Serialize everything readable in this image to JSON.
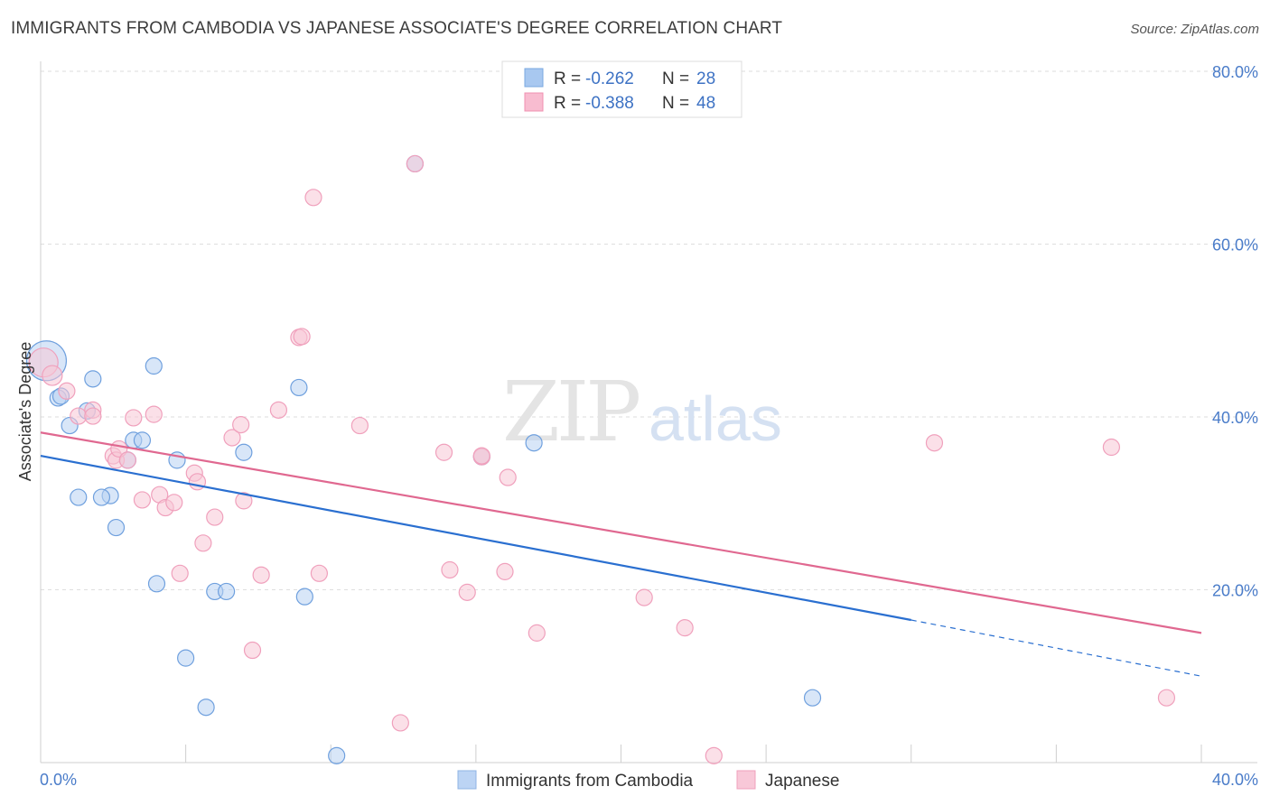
{
  "title": "IMMIGRANTS FROM CAMBODIA VS JAPANESE ASSOCIATE'S DEGREE CORRELATION CHART",
  "source": "Source: ZipAtlas.com",
  "watermark": {
    "zip": "ZIP",
    "atlas": "atlas"
  },
  "legend": {
    "rows": [
      {
        "r_label": "R =",
        "r_value": "-0.262",
        "n_label": "N =",
        "n_value": "28",
        "color": "#a8c8f0",
        "border": "#7aa8e0"
      },
      {
        "r_label": "R =",
        "r_value": "-0.388",
        "n_label": "N =",
        "n_value": "48",
        "color": "#f8bcd0",
        "border": "#f090b0"
      }
    ]
  },
  "bottom_legend": [
    {
      "label": "Immigrants from Cambodia",
      "color": "#bcd4f4",
      "border": "#90b4e4"
    },
    {
      "label": "Japanese",
      "color": "#f8c8d8",
      "border": "#f0a0bc"
    }
  ],
  "chart_data": {
    "type": "scatter",
    "xlabel": "",
    "ylabel": "Associate's Degree",
    "xlim": [
      0,
      40
    ],
    "ylim": [
      0,
      80
    ],
    "x_tick_labels": [
      "0.0%",
      "40.0%"
    ],
    "y_ticks": [
      20,
      40,
      60,
      80
    ],
    "y_tick_labels": [
      "20.0%",
      "40.0%",
      "60.0%",
      "80.0%"
    ],
    "grid": true,
    "series": [
      {
        "name": "Immigrants from Cambodia",
        "color": "#6fa0de",
        "fill": "#b8d2f2",
        "trend_color": "#2a6fd0",
        "trend": {
          "x0": 0,
          "y0": 35.5,
          "x1": 30,
          "y1": 16.5,
          "dash_x1": 40,
          "dash_y1": 10
        },
        "points": [
          [
            0.2,
            46.5,
            22
          ],
          [
            0.6,
            42.2,
            9
          ],
          [
            0.7,
            42.4,
            9
          ],
          [
            1.8,
            44.4,
            9
          ],
          [
            1.0,
            39.0,
            9
          ],
          [
            1.6,
            40.7,
            9
          ],
          [
            3.9,
            45.9,
            9
          ],
          [
            3.2,
            37.3,
            9
          ],
          [
            3.5,
            37.3,
            9
          ],
          [
            3.0,
            35.0,
            9
          ],
          [
            4.7,
            35.0,
            9
          ],
          [
            7.0,
            35.9,
            9
          ],
          [
            8.9,
            43.4,
            9
          ],
          [
            1.3,
            30.7,
            9
          ],
          [
            2.4,
            30.9,
            9
          ],
          [
            2.1,
            30.7,
            9
          ],
          [
            2.6,
            27.2,
            9
          ],
          [
            4.0,
            20.7,
            9
          ],
          [
            6.0,
            19.8,
            9
          ],
          [
            6.4,
            19.8,
            9
          ],
          [
            9.1,
            19.2,
            9
          ],
          [
            5.0,
            12.1,
            9
          ],
          [
            5.7,
            6.4,
            9
          ],
          [
            12.9,
            69.3,
            9
          ],
          [
            15.2,
            35.4,
            9
          ],
          [
            17.0,
            37.0,
            9
          ],
          [
            10.2,
            0.8,
            9
          ],
          [
            26.6,
            7.5,
            9
          ]
        ]
      },
      {
        "name": "Japanese",
        "color": "#f0a0bc",
        "fill": "#f8c6d6",
        "trend_color": "#e06890",
        "trend": {
          "x0": 0,
          "y0": 38.2,
          "x1": 40,
          "y1": 15.0
        },
        "points": [
          [
            0.1,
            46.3,
            16
          ],
          [
            0.4,
            44.8,
            11
          ],
          [
            0.9,
            43.0,
            9
          ],
          [
            1.3,
            40.1,
            9
          ],
          [
            1.8,
            40.8,
            9
          ],
          [
            1.8,
            40.1,
            9
          ],
          [
            2.5,
            35.5,
            9
          ],
          [
            2.6,
            35.0,
            9
          ],
          [
            2.7,
            36.3,
            9
          ],
          [
            3.0,
            35.0,
            9
          ],
          [
            3.2,
            39.9,
            9
          ],
          [
            3.5,
            30.4,
            9
          ],
          [
            3.9,
            40.3,
            9
          ],
          [
            4.1,
            31.0,
            9
          ],
          [
            4.3,
            29.5,
            9
          ],
          [
            4.6,
            30.1,
            9
          ],
          [
            5.3,
            33.5,
            9
          ],
          [
            5.4,
            32.5,
            9
          ],
          [
            5.6,
            25.4,
            9
          ],
          [
            6.0,
            28.4,
            9
          ],
          [
            6.6,
            37.6,
            9
          ],
          [
            6.9,
            39.1,
            9
          ],
          [
            7.0,
            30.3,
            9
          ],
          [
            4.8,
            21.9,
            9
          ],
          [
            7.6,
            21.7,
            9
          ],
          [
            8.2,
            40.8,
            9
          ],
          [
            8.9,
            49.2,
            9
          ],
          [
            9.0,
            49.3,
            9
          ],
          [
            9.4,
            65.4,
            9
          ],
          [
            9.6,
            21.9,
            9
          ],
          [
            11.0,
            39.0,
            9
          ],
          [
            7.3,
            13.0,
            9
          ],
          [
            12.4,
            4.6,
            9
          ],
          [
            13.9,
            35.9,
            9
          ],
          [
            14.1,
            22.3,
            9
          ],
          [
            14.7,
            19.7,
            9
          ],
          [
            15.2,
            35.4,
            9
          ],
          [
            16.0,
            22.1,
            9
          ],
          [
            16.1,
            33.0,
            9
          ],
          [
            17.1,
            15.0,
            9
          ],
          [
            20.8,
            19.1,
            9
          ],
          [
            22.2,
            15.6,
            9
          ],
          [
            23.2,
            0.8,
            9
          ],
          [
            30.8,
            37.0,
            9
          ],
          [
            36.9,
            36.5,
            9
          ],
          [
            38.8,
            7.5,
            9
          ],
          [
            12.9,
            69.3,
            9
          ],
          [
            15.2,
            35.5,
            9
          ]
        ]
      }
    ]
  }
}
